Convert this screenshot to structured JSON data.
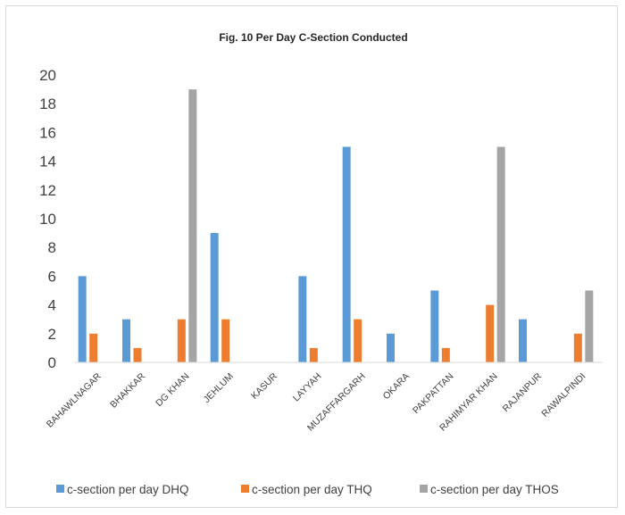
{
  "chart_data": {
    "type": "bar",
    "title": "Fig. 10  Per Day C-Section Conducted",
    "categories": [
      "BAHAWLNAGAR",
      "BHAKKAR",
      "DG KHAN",
      "JEHLUM",
      "KASUR",
      "LAYYAH",
      "MUZAFFARGARH",
      "OKARA",
      "PAKPATTAN",
      "RAHIMYAR KHAN",
      "RAJANPUR",
      "RAWALPINDI"
    ],
    "series": [
      {
        "name": "c-section per day DHQ",
        "color": "#5b9bd5",
        "values": [
          6,
          3,
          0,
          9,
          0,
          6,
          15,
          2,
          5,
          0,
          3,
          0
        ]
      },
      {
        "name": "c-section per day THQ",
        "color": "#ed7d31",
        "values": [
          2,
          1,
          3,
          3,
          0,
          1,
          3,
          0,
          1,
          4,
          0,
          2
        ]
      },
      {
        "name": "c-section per day THOS",
        "color": "#a5a5a5",
        "values": [
          0,
          0,
          19,
          0,
          0,
          0,
          0,
          0,
          0,
          15,
          0,
          5
        ]
      }
    ],
    "ylim": [
      0,
      20
    ],
    "yticks": [
      0,
      2,
      4,
      6,
      8,
      10,
      12,
      14,
      16,
      18,
      20
    ],
    "grid": false,
    "legend_position": "bottom"
  }
}
